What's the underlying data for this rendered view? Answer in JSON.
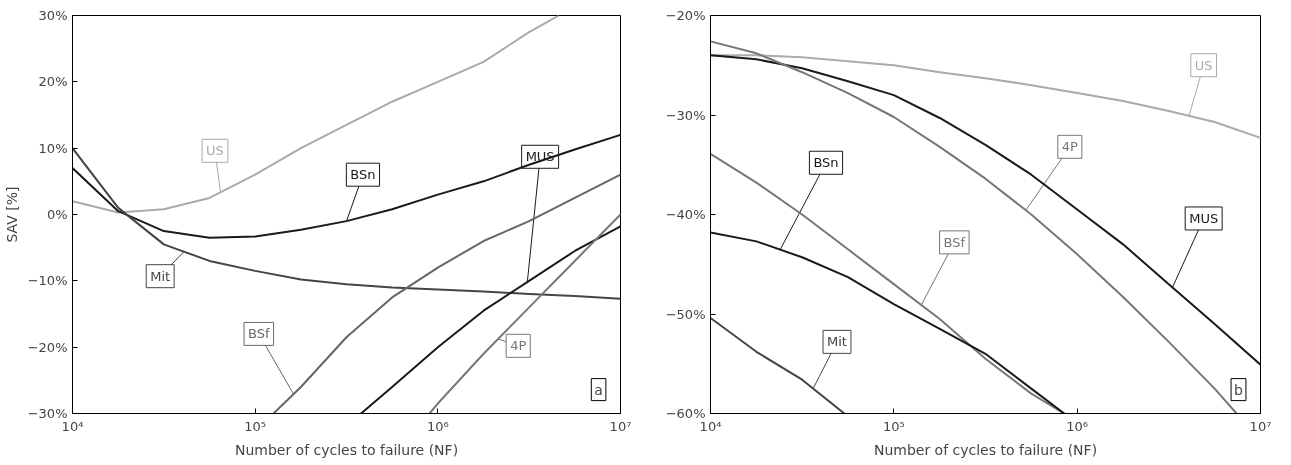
{
  "chart_data": [
    {
      "type": "line",
      "xlabel": "Number of cycles to failure (NF)",
      "ylabel": "SAV [%]",
      "log": "x",
      "grid": false,
      "marker": "none",
      "line_style": "solid",
      "xlim": [
        10000,
        10000000
      ],
      "xticks": [
        {
          "value": 10000,
          "label": "10⁴"
        },
        {
          "value": 100000,
          "label": "10⁵"
        },
        {
          "value": 1000000,
          "label": "10⁶"
        },
        {
          "value": 10000000,
          "label": "10⁷"
        }
      ],
      "ylim": [
        -30,
        30
      ],
      "yticks": [
        {
          "value": -30,
          "label": "−30%"
        },
        {
          "value": -20,
          "label": "−20%"
        },
        {
          "value": -10,
          "label": "−10%"
        },
        {
          "value": 0,
          "label": "0%"
        },
        {
          "value": 10,
          "label": "10%"
        },
        {
          "value": 20,
          "label": "20%"
        },
        {
          "value": 30,
          "label": "30%"
        }
      ],
      "annotations": [
        "a"
      ],
      "series": [
        {
          "name": "US",
          "color": "#aaaaaa",
          "x": [
            10000,
            17800,
            31600,
            56200,
            100000,
            178000,
            316000,
            562000,
            1000000,
            1780000,
            3160000,
            4600000
          ],
          "values": [
            2,
            0.3,
            0.8,
            2.5,
            6,
            10,
            13.5,
            17,
            20,
            23,
            27.5,
            30
          ]
        },
        {
          "name": "BSn",
          "color": "#1a1a1a",
          "x": [
            10000,
            17800,
            31600,
            56200,
            100000,
            178000,
            316000,
            562000,
            1000000,
            1780000,
            3160000,
            5620000,
            10000000
          ],
          "values": [
            7,
            0.5,
            -2.5,
            -3.5,
            -3.3,
            -2.3,
            -1,
            0.8,
            3,
            5,
            7.5,
            9.8,
            12
          ]
        },
        {
          "name": "Mit",
          "color": "#444444",
          "x": [
            10000,
            17800,
            31600,
            56200,
            100000,
            178000,
            316000,
            562000,
            1000000,
            1780000,
            3160000,
            5620000,
            10000000
          ],
          "values": [
            10,
            1,
            -4.5,
            -7,
            -8.5,
            -9.8,
            -10.5,
            -11,
            -11.3,
            -11.6,
            -12,
            -12.3,
            -12.7
          ]
        },
        {
          "name": "BSf",
          "color": "#666666",
          "x": [
            126000,
            178000,
            316000,
            562000,
            1000000,
            1780000,
            3160000,
            5620000,
            10000000
          ],
          "values": [
            -30,
            -26,
            -18.5,
            -12.5,
            -8,
            -4,
            -1,
            2.5,
            6
          ]
        },
        {
          "name": "MUS",
          "color": "#1a1a1a",
          "x": [
            380000,
            562000,
            1000000,
            1780000,
            3160000,
            5620000,
            10000000
          ],
          "values": [
            -30,
            -26,
            -20,
            -14.5,
            -10,
            -5.5,
            -1.8
          ]
        },
        {
          "name": "4P",
          "color": "#777777",
          "x": [
            900000,
            1000000,
            1780000,
            3160000,
            5620000,
            10000000
          ],
          "values": [
            -30,
            -28.5,
            -21,
            -14,
            -7,
            0
          ]
        }
      ]
    },
    {
      "type": "line",
      "xlabel": "Number of cycles to failure (NF)",
      "log": "x",
      "grid": false,
      "marker": "none",
      "line_style": "solid",
      "xlim": [
        10000,
        10000000
      ],
      "xticks": [
        {
          "value": 10000,
          "label": "10⁴"
        },
        {
          "value": 100000,
          "label": "10⁵"
        },
        {
          "value": 1000000,
          "label": "10⁶"
        },
        {
          "value": 10000000,
          "label": "10⁷"
        }
      ],
      "ylim": [
        -60,
        -20
      ],
      "yticks": [
        {
          "value": -60,
          "label": "−60%"
        },
        {
          "value": -50,
          "label": "−50%"
        },
        {
          "value": -40,
          "label": "−40%"
        },
        {
          "value": -30,
          "label": "−30%"
        },
        {
          "value": -20,
          "label": "−20%"
        }
      ],
      "annotations": [
        "b"
      ],
      "series": [
        {
          "name": "US",
          "color": "#aaaaaa",
          "x": [
            10000,
            17800,
            31600,
            56200,
            100000,
            178000,
            316000,
            562000,
            1000000,
            1780000,
            3160000,
            5620000,
            10000000
          ],
          "values": [
            -24,
            -24,
            -24.2,
            -24.6,
            -25,
            -25.7,
            -26.3,
            -27,
            -27.8,
            -28.6,
            -29.6,
            -30.7,
            -32.3
          ]
        },
        {
          "name": "MUS",
          "color": "#1a1a1a",
          "x": [
            10000,
            17800,
            31600,
            56200,
            100000,
            178000,
            316000,
            562000,
            1000000,
            1780000,
            3160000,
            5620000,
            10000000
          ],
          "values": [
            -24,
            -24.4,
            -25.3,
            -26.6,
            -28,
            -30.3,
            -33,
            -36,
            -39.5,
            -43,
            -47,
            -51,
            -55.1
          ]
        },
        {
          "name": "4P",
          "color": "#777777",
          "x": [
            10000,
            17800,
            31600,
            56200,
            100000,
            178000,
            316000,
            562000,
            1000000,
            1780000,
            3160000,
            5620000,
            7400000
          ],
          "values": [
            -22.6,
            -23.8,
            -25.7,
            -27.8,
            -30.2,
            -33.2,
            -36.4,
            -40,
            -44,
            -48.3,
            -52.8,
            -57.5,
            -60
          ]
        },
        {
          "name": "BSf",
          "color": "#777777",
          "x": [
            10000,
            17800,
            31600,
            56200,
            100000,
            178000,
            316000,
            562000,
            850000
          ],
          "values": [
            -33.9,
            -36.8,
            -40,
            -43.5,
            -47,
            -50.5,
            -54.5,
            -58,
            -60
          ]
        },
        {
          "name": "BSn",
          "color": "#1a1a1a",
          "x": [
            10000,
            17800,
            31600,
            56200,
            100000,
            178000,
            316000,
            562000,
            850000
          ],
          "values": [
            -41.8,
            -42.7,
            -44.3,
            -46.3,
            -49,
            -51.5,
            -54,
            -57.5,
            -60
          ]
        },
        {
          "name": "Mit",
          "color": "#444444",
          "x": [
            10000,
            17800,
            31600,
            53700
          ],
          "values": [
            -50.4,
            -53.8,
            -56.6,
            -60
          ]
        }
      ]
    }
  ]
}
